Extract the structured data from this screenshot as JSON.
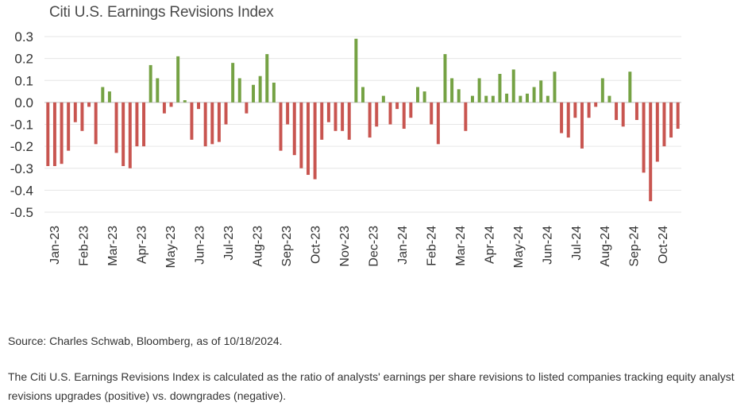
{
  "colors": {
    "positive": "#75a244",
    "negative": "#c85550",
    "axis": "#cccccc",
    "grid": "#e6e6e6"
  },
  "chart_data": {
    "type": "bar",
    "title": "Citi U.S. Earnings Revisions Index",
    "xlabel": "",
    "ylabel": "",
    "ylim": [
      -0.5,
      0.3
    ],
    "yticks": [
      0.3,
      0.2,
      0.1,
      0.0,
      -0.1,
      -0.2,
      -0.3,
      -0.4,
      -0.5
    ],
    "ytick_labels": [
      "0.3",
      "0.2",
      "0.1",
      "0.0",
      "-0.1",
      "-0.2",
      "-0.3",
      "-0.4",
      "-0.5"
    ],
    "grid": true,
    "x_tick_labels": [
      "Jan-23",
      "Feb-23",
      "Mar-23",
      "Apr-23",
      "May-23",
      "Jun-23",
      "Jul-23",
      "Aug-23",
      "Sep-23",
      "Oct-23",
      "Nov-23",
      "Dec-23",
      "Jan-24",
      "Feb-24",
      "Mar-24",
      "Apr-24",
      "May-24",
      "Jun-24",
      "Jul-24",
      "Aug-24",
      "Sep-24",
      "Oct-24"
    ],
    "values": [
      -0.29,
      -0.29,
      -0.28,
      -0.22,
      -0.09,
      -0.13,
      -0.02,
      -0.19,
      0.07,
      0.05,
      -0.23,
      -0.29,
      -0.3,
      -0.2,
      -0.2,
      0.17,
      0.11,
      -0.05,
      -0.02,
      0.21,
      0.01,
      -0.17,
      -0.03,
      -0.2,
      -0.19,
      -0.18,
      -0.1,
      0.18,
      0.11,
      -0.05,
      0.08,
      0.12,
      0.22,
      0.09,
      -0.22,
      -0.1,
      -0.24,
      -0.3,
      -0.33,
      -0.35,
      -0.17,
      -0.09,
      -0.13,
      -0.13,
      -0.17,
      0.29,
      0.07,
      -0.16,
      -0.11,
      0.03,
      -0.1,
      -0.03,
      -0.12,
      -0.07,
      0.07,
      0.05,
      -0.1,
      -0.19,
      0.22,
      0.11,
      0.06,
      -0.13,
      0.03,
      0.11,
      0.03,
      0.03,
      0.13,
      0.04,
      0.15,
      0.03,
      0.04,
      0.07,
      0.1,
      0.03,
      0.14,
      -0.14,
      -0.16,
      -0.07,
      -0.21,
      -0.07,
      -0.02,
      0.11,
      0.03,
      -0.08,
      -0.11,
      0.14,
      -0.08,
      -0.32,
      -0.45,
      -0.27,
      -0.2,
      -0.16,
      -0.12
    ]
  },
  "footer": {
    "source": "Source: Charles Schwab, Bloomberg, as of 10/18/2024.",
    "note": "The Citi U.S. Earnings Revisions Index is calculated as the ratio of analysts' earnings per share revisions to listed companies tracking equity analyst revisions upgrades (positive) vs. downgrades (negative)."
  }
}
